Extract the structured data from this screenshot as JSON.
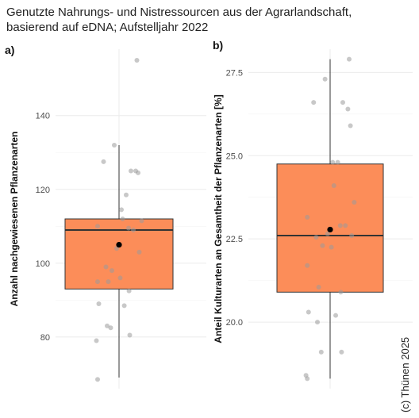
{
  "title": [
    "Genutzte Nahrungs- und Nistressourcen aus der Agrarlandschaft,",
    "basierend auf eDNA; Aufstelljahr 2022"
  ],
  "copyright": "(c) Thünen 2025",
  "colors": {
    "box_fill": "#fc8d59",
    "box_stroke": "#333333",
    "points": "#9a9a9a",
    "mean": "#000000",
    "grid": "#ebebeb"
  },
  "chart_data": [
    {
      "panel_label": "a)",
      "type": "box",
      "ylabel": "Anzahl nachgewiesenen Pflanzenarten",
      "ylim": [
        66,
        158
      ],
      "yticks": [
        80,
        100,
        120,
        140
      ],
      "ytick_labels": [
        "80",
        "100",
        "120",
        "140"
      ],
      "grid": true,
      "box": {
        "min": 69,
        "q1": 93,
        "median": 109,
        "q3": 112,
        "max": 132,
        "mean": 105
      },
      "points": [
        155,
        132,
        127.5,
        125,
        125,
        124.5,
        118.5,
        114.5,
        112,
        111.5,
        110,
        109.5,
        109,
        104,
        103,
        99,
        98,
        96,
        95,
        95,
        92.5,
        89,
        88.5,
        83,
        82.5,
        80.5,
        79,
        68.5
      ]
    },
    {
      "panel_label": "b)",
      "type": "box",
      "ylabel": "Anteil Kulturarten an Gesamtheit der Pflanzenarten [%]",
      "ylim": [
        18.0,
        28.2
      ],
      "yticks": [
        20.0,
        22.5,
        25.0,
        27.5
      ],
      "ytick_labels": [
        "20.0",
        "22.5",
        "25.0",
        "27.5"
      ],
      "grid": true,
      "box": {
        "min": 18.3,
        "q1": 20.9,
        "median": 22.6,
        "q3": 24.75,
        "max": 27.9,
        "mean": 22.78
      },
      "points": [
        27.9,
        27.3,
        26.6,
        26.6,
        26.4,
        25.9,
        24.8,
        24.8,
        24.1,
        23.6,
        23.15,
        22.9,
        22.9,
        22.65,
        22.6,
        22.55,
        22.3,
        22.25,
        21.7,
        21.05,
        20.9,
        20.3,
        20.2,
        20.0,
        19.1,
        19.1,
        18.4,
        18.3
      ]
    }
  ]
}
